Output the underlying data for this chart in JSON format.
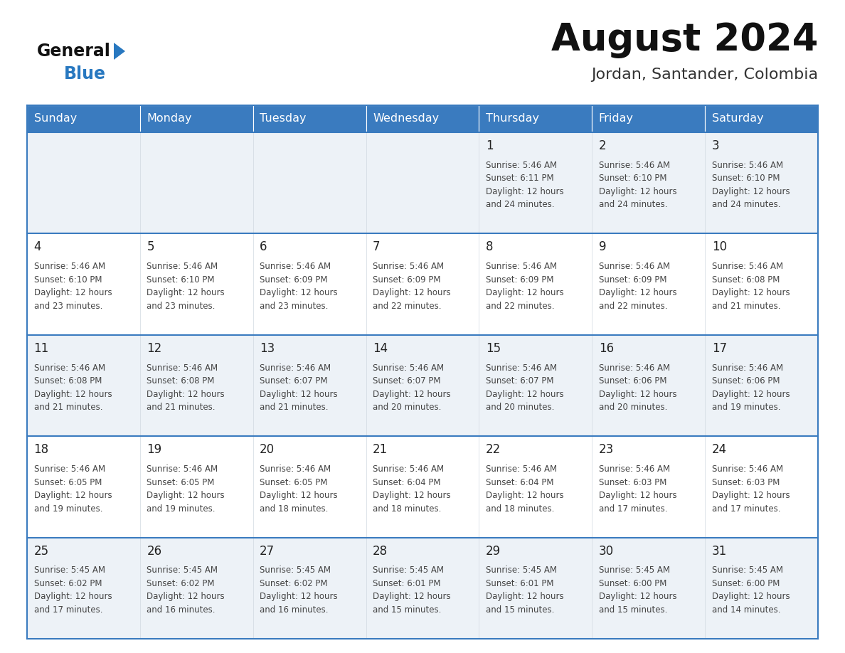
{
  "title": "August 2024",
  "subtitle": "Jordan, Santander, Colombia",
  "days_of_week": [
    "Sunday",
    "Monday",
    "Tuesday",
    "Wednesday",
    "Thursday",
    "Friday",
    "Saturday"
  ],
  "header_bg": "#3a7bbf",
  "header_text": "#ffffff",
  "row_bg_odd": "#edf2f7",
  "row_bg_even": "#ffffff",
  "cell_border_color": "#3a7bbf",
  "cell_inner_border": "#d0d8e0",
  "day_number_color": "#222222",
  "cell_text_color": "#444444",
  "title_color": "#111111",
  "subtitle_color": "#333333",
  "logo_general_color": "#111111",
  "logo_blue_color": "#2878c0",
  "weeks": [
    [
      {
        "day": null,
        "text": ""
      },
      {
        "day": null,
        "text": ""
      },
      {
        "day": null,
        "text": ""
      },
      {
        "day": null,
        "text": ""
      },
      {
        "day": 1,
        "text": "Sunrise: 5:46 AM\nSunset: 6:11 PM\nDaylight: 12 hours\nand 24 minutes."
      },
      {
        "day": 2,
        "text": "Sunrise: 5:46 AM\nSunset: 6:10 PM\nDaylight: 12 hours\nand 24 minutes."
      },
      {
        "day": 3,
        "text": "Sunrise: 5:46 AM\nSunset: 6:10 PM\nDaylight: 12 hours\nand 24 minutes."
      }
    ],
    [
      {
        "day": 4,
        "text": "Sunrise: 5:46 AM\nSunset: 6:10 PM\nDaylight: 12 hours\nand 23 minutes."
      },
      {
        "day": 5,
        "text": "Sunrise: 5:46 AM\nSunset: 6:10 PM\nDaylight: 12 hours\nand 23 minutes."
      },
      {
        "day": 6,
        "text": "Sunrise: 5:46 AM\nSunset: 6:09 PM\nDaylight: 12 hours\nand 23 minutes."
      },
      {
        "day": 7,
        "text": "Sunrise: 5:46 AM\nSunset: 6:09 PM\nDaylight: 12 hours\nand 22 minutes."
      },
      {
        "day": 8,
        "text": "Sunrise: 5:46 AM\nSunset: 6:09 PM\nDaylight: 12 hours\nand 22 minutes."
      },
      {
        "day": 9,
        "text": "Sunrise: 5:46 AM\nSunset: 6:09 PM\nDaylight: 12 hours\nand 22 minutes."
      },
      {
        "day": 10,
        "text": "Sunrise: 5:46 AM\nSunset: 6:08 PM\nDaylight: 12 hours\nand 21 minutes."
      }
    ],
    [
      {
        "day": 11,
        "text": "Sunrise: 5:46 AM\nSunset: 6:08 PM\nDaylight: 12 hours\nand 21 minutes."
      },
      {
        "day": 12,
        "text": "Sunrise: 5:46 AM\nSunset: 6:08 PM\nDaylight: 12 hours\nand 21 minutes."
      },
      {
        "day": 13,
        "text": "Sunrise: 5:46 AM\nSunset: 6:07 PM\nDaylight: 12 hours\nand 21 minutes."
      },
      {
        "day": 14,
        "text": "Sunrise: 5:46 AM\nSunset: 6:07 PM\nDaylight: 12 hours\nand 20 minutes."
      },
      {
        "day": 15,
        "text": "Sunrise: 5:46 AM\nSunset: 6:07 PM\nDaylight: 12 hours\nand 20 minutes."
      },
      {
        "day": 16,
        "text": "Sunrise: 5:46 AM\nSunset: 6:06 PM\nDaylight: 12 hours\nand 20 minutes."
      },
      {
        "day": 17,
        "text": "Sunrise: 5:46 AM\nSunset: 6:06 PM\nDaylight: 12 hours\nand 19 minutes."
      }
    ],
    [
      {
        "day": 18,
        "text": "Sunrise: 5:46 AM\nSunset: 6:05 PM\nDaylight: 12 hours\nand 19 minutes."
      },
      {
        "day": 19,
        "text": "Sunrise: 5:46 AM\nSunset: 6:05 PM\nDaylight: 12 hours\nand 19 minutes."
      },
      {
        "day": 20,
        "text": "Sunrise: 5:46 AM\nSunset: 6:05 PM\nDaylight: 12 hours\nand 18 minutes."
      },
      {
        "day": 21,
        "text": "Sunrise: 5:46 AM\nSunset: 6:04 PM\nDaylight: 12 hours\nand 18 minutes."
      },
      {
        "day": 22,
        "text": "Sunrise: 5:46 AM\nSunset: 6:04 PM\nDaylight: 12 hours\nand 18 minutes."
      },
      {
        "day": 23,
        "text": "Sunrise: 5:46 AM\nSunset: 6:03 PM\nDaylight: 12 hours\nand 17 minutes."
      },
      {
        "day": 24,
        "text": "Sunrise: 5:46 AM\nSunset: 6:03 PM\nDaylight: 12 hours\nand 17 minutes."
      }
    ],
    [
      {
        "day": 25,
        "text": "Sunrise: 5:45 AM\nSunset: 6:02 PM\nDaylight: 12 hours\nand 17 minutes."
      },
      {
        "day": 26,
        "text": "Sunrise: 5:45 AM\nSunset: 6:02 PM\nDaylight: 12 hours\nand 16 minutes."
      },
      {
        "day": 27,
        "text": "Sunrise: 5:45 AM\nSunset: 6:02 PM\nDaylight: 12 hours\nand 16 minutes."
      },
      {
        "day": 28,
        "text": "Sunrise: 5:45 AM\nSunset: 6:01 PM\nDaylight: 12 hours\nand 15 minutes."
      },
      {
        "day": 29,
        "text": "Sunrise: 5:45 AM\nSunset: 6:01 PM\nDaylight: 12 hours\nand 15 minutes."
      },
      {
        "day": 30,
        "text": "Sunrise: 5:45 AM\nSunset: 6:00 PM\nDaylight: 12 hours\nand 15 minutes."
      },
      {
        "day": 31,
        "text": "Sunrise: 5:45 AM\nSunset: 6:00 PM\nDaylight: 12 hours\nand 14 minutes."
      }
    ]
  ]
}
